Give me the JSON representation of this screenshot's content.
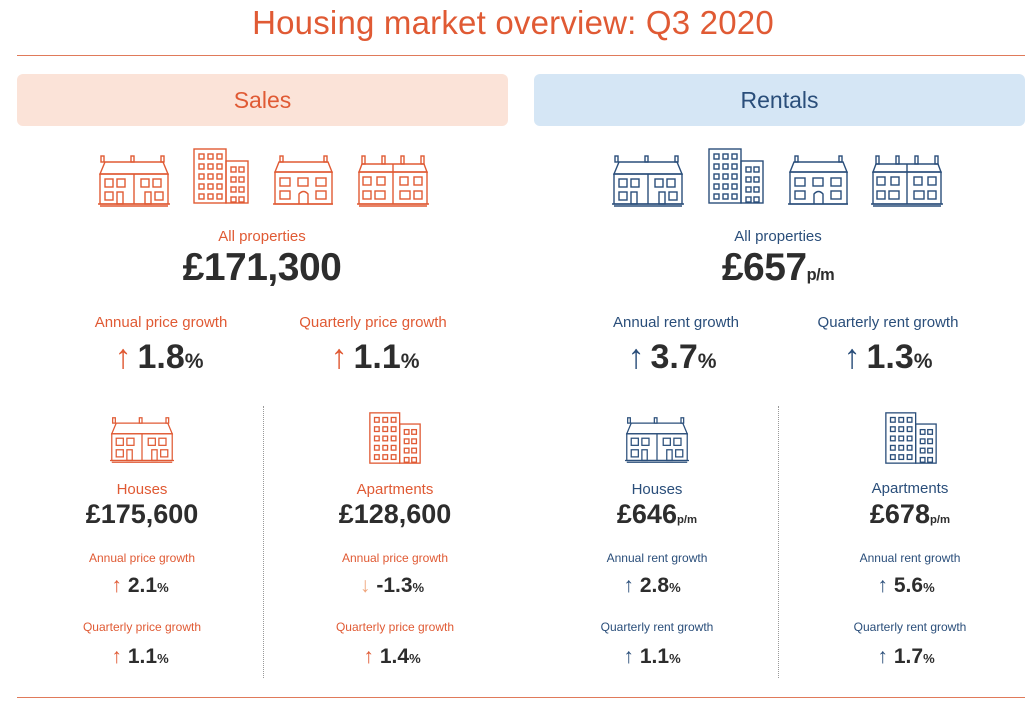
{
  "title": "Housing market overview: Q3 2020",
  "colors": {
    "sales": "#e05a34",
    "rentals": "#2a4e7a",
    "sales_band": "#fbe3d8",
    "rentals_band": "#d5e6f5",
    "down_arrow": "#f0a57c"
  },
  "sales": {
    "header": "Sales",
    "all_label": "All properties",
    "all_value": "£171,300",
    "annual_label": "Annual price growth",
    "annual_value": "1.8",
    "quarterly_label": "Quarterly price growth",
    "quarterly_value": "1.1",
    "houses": {
      "label": "Houses",
      "value": "£175,600",
      "annual_label": "Annual price growth",
      "annual_value": "2.1",
      "quarterly_label": "Quarterly price growth",
      "quarterly_value": "1.1"
    },
    "apartments": {
      "label": "Apartments",
      "value": "£128,600",
      "annual_label": "Annual price growth",
      "annual_value": "-1.3",
      "quarterly_label": "Quarterly price growth",
      "quarterly_value": "1.4"
    }
  },
  "rentals": {
    "header": "Rentals",
    "all_label": "All properties",
    "all_value": "£657",
    "annual_label": "Annual rent growth",
    "annual_value": "3.7",
    "quarterly_label": "Quarterly rent growth",
    "quarterly_value": "1.3",
    "houses": {
      "label": "Houses",
      "value": "£646",
      "annual_label": "Annual rent growth",
      "annual_value": "2.8",
      "quarterly_label": "Quarterly rent growth",
      "quarterly_value": "1.1"
    },
    "apartments": {
      "label": "Apartments",
      "value": "£678",
      "annual_label": "Annual rent growth",
      "annual_value": "5.6",
      "quarterly_label": "Quarterly rent growth",
      "quarterly_value": "1.7"
    }
  },
  "units": {
    "percent": "%",
    "per_month": "p/m"
  },
  "icons": {
    "up": "arrow-up-icon",
    "down": "arrow-down-icon",
    "house": "house-icon",
    "apartment": "apartment-icon"
  }
}
